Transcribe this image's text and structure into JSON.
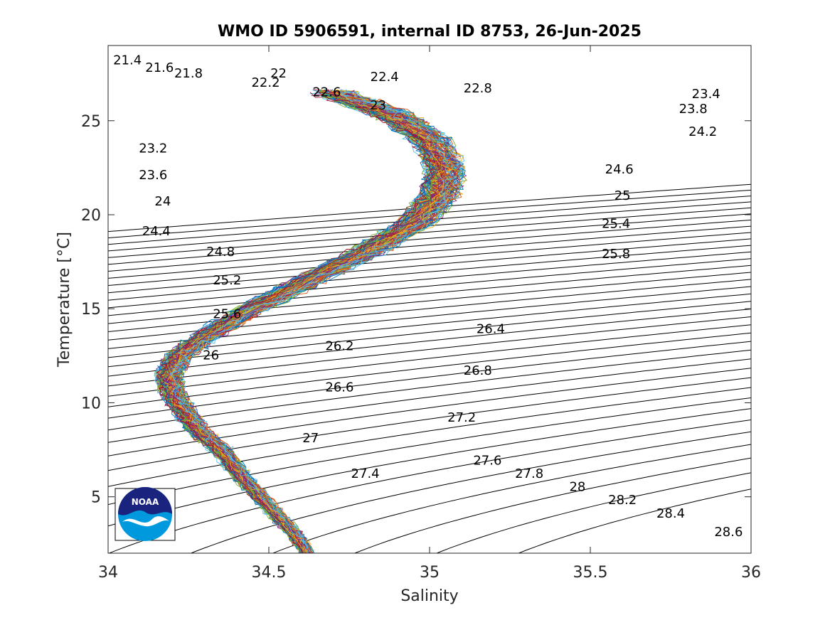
{
  "chart_data": {
    "type": "scatter",
    "title": "WMO ID 5906591, internal ID 8753, 26-Jun-2025",
    "xlabel": "Salinity",
    "ylabel": "Temperature [°C]",
    "xlim": [
      34,
      36
    ],
    "ylim": [
      2,
      29
    ],
    "xticks": [
      34,
      34.5,
      35,
      35.5,
      36
    ],
    "xtick_labels": [
      "34",
      "34.5",
      "35",
      "35.5",
      "36"
    ],
    "yticks": [
      5,
      10,
      15,
      20,
      25
    ],
    "ytick_labels": [
      "5",
      "10",
      "15",
      "20",
      "25"
    ],
    "grid": false,
    "isopycnal_labels": [
      {
        "text": "21.4",
        "s": 34.06,
        "t": 28.0
      },
      {
        "text": "21.6",
        "s": 34.16,
        "t": 27.6
      },
      {
        "text": "21.8",
        "s": 34.25,
        "t": 27.3
      },
      {
        "text": "22",
        "s": 34.53,
        "t": 27.3
      },
      {
        "text": "22.2",
        "s": 34.49,
        "t": 26.8
      },
      {
        "text": "22.4",
        "s": 34.86,
        "t": 27.1
      },
      {
        "text": "22.6",
        "s": 34.68,
        "t": 26.3
      },
      {
        "text": "22.8",
        "s": 35.15,
        "t": 26.5
      },
      {
        "text": "23",
        "s": 34.84,
        "t": 25.6
      },
      {
        "text": "23.2",
        "s": 34.14,
        "t": 23.3
      },
      {
        "text": "23.4",
        "s": 35.86,
        "t": 26.2
      },
      {
        "text": "23.6",
        "s": 34.14,
        "t": 21.9
      },
      {
        "text": "23.8",
        "s": 35.82,
        "t": 25.4
      },
      {
        "text": "24",
        "s": 34.17,
        "t": 20.5
      },
      {
        "text": "24.2",
        "s": 35.85,
        "t": 24.2
      },
      {
        "text": "24.4",
        "s": 34.15,
        "t": 18.9
      },
      {
        "text": "24.6",
        "s": 35.59,
        "t": 22.2
      },
      {
        "text": "24.8",
        "s": 34.35,
        "t": 17.8
      },
      {
        "text": "25",
        "s": 35.6,
        "t": 20.8
      },
      {
        "text": "25.2",
        "s": 34.37,
        "t": 16.3
      },
      {
        "text": "25.4",
        "s": 35.58,
        "t": 19.3
      },
      {
        "text": "25.6",
        "s": 34.37,
        "t": 14.5
      },
      {
        "text": "25.8",
        "s": 35.58,
        "t": 17.7
      },
      {
        "text": "26",
        "s": 34.32,
        "t": 12.3
      },
      {
        "text": "26.2",
        "s": 34.72,
        "t": 12.8
      },
      {
        "text": "26.4",
        "s": 35.19,
        "t": 13.7
      },
      {
        "text": "26.6",
        "s": 34.72,
        "t": 10.6
      },
      {
        "text": "26.8",
        "s": 35.15,
        "t": 11.5
      },
      {
        "text": "27",
        "s": 34.63,
        "t": 7.9
      },
      {
        "text": "27.2",
        "s": 35.1,
        "t": 9.0
      },
      {
        "text": "27.4",
        "s": 34.8,
        "t": 6.0
      },
      {
        "text": "27.6",
        "s": 35.18,
        "t": 6.7
      },
      {
        "text": "27.8",
        "s": 35.31,
        "t": 6.0
      },
      {
        "text": "28",
        "s": 35.46,
        "t": 5.3
      },
      {
        "text": "28.2",
        "s": 35.6,
        "t": 4.6
      },
      {
        "text": "28.4",
        "s": 35.75,
        "t": 3.9
      },
      {
        "text": "28.6",
        "s": 35.93,
        "t": 2.9
      }
    ],
    "profile_mean": {
      "s": [
        34.62,
        34.58,
        34.5,
        34.42,
        34.35,
        34.28,
        34.24,
        34.2,
        34.19,
        34.22,
        34.3,
        34.45,
        34.62,
        34.8,
        34.95,
        35.03,
        35.05,
        35.0,
        34.9,
        34.78,
        34.68
      ],
      "t": [
        2.0,
        3.0,
        4.5,
        6.0,
        7.5,
        8.5,
        9.5,
        10.5,
        11.5,
        12.5,
        13.5,
        15.0,
        16.5,
        18.0,
        19.5,
        21.0,
        22.5,
        24.0,
        25.2,
        26.0,
        26.6
      ]
    },
    "profile_colors": [
      "#0072bd",
      "#d95319",
      "#edb120",
      "#7e2f8e",
      "#77ac30",
      "#4dbeee",
      "#a2142f"
    ],
    "profile_count": 140
  },
  "logo": {
    "text": "NOAA"
  }
}
